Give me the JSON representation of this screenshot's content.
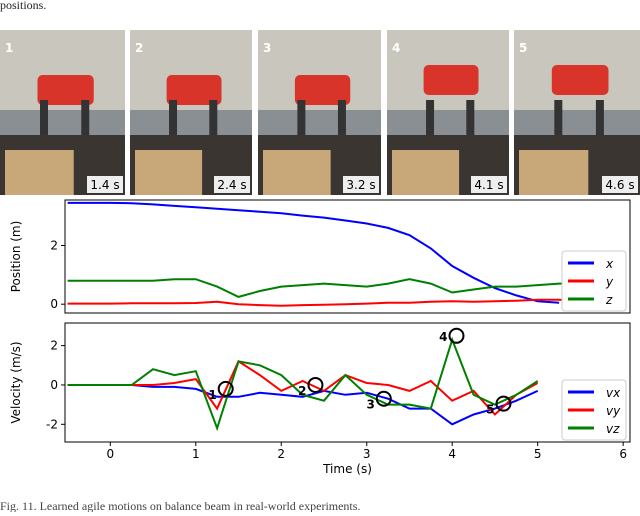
{
  "header": {
    "text": "positions."
  },
  "photos": [
    {
      "label": "1",
      "time": "1.4 s"
    },
    {
      "label": "2",
      "time": "2.4 s"
    },
    {
      "label": "3",
      "time": "3.2 s"
    },
    {
      "label": "4",
      "time": "4.1 s"
    },
    {
      "label": "5",
      "time": "4.6 s"
    }
  ],
  "chart_data": [
    {
      "type": "line",
      "ylabel": "Position (m)",
      "legend": "lower right",
      "xlim": [
        -0.53,
        6.08
      ],
      "ylim": [
        -0.3,
        3.55
      ],
      "yticks": [
        0,
        2
      ],
      "x": [
        -0.5,
        -0.25,
        0,
        0.25,
        0.5,
        0.75,
        1,
        1.25,
        1.5,
        1.75,
        2,
        2.25,
        2.5,
        2.75,
        3,
        3.25,
        3.5,
        3.75,
        4,
        4.25,
        4.5,
        4.75,
        5,
        5.25,
        5.5,
        5.75,
        6
      ],
      "series": [
        {
          "name": "x",
          "color": "#0000ff",
          "values": [
            3.45,
            3.45,
            3.45,
            3.44,
            3.4,
            3.35,
            3.3,
            3.25,
            3.2,
            3.15,
            3.1,
            3.02,
            2.95,
            2.85,
            2.75,
            2.6,
            2.35,
            1.9,
            1.3,
            0.9,
            0.55,
            0.3,
            0.1,
            0.05,
            null,
            null,
            null
          ]
        },
        {
          "name": "y",
          "color": "#ff0000",
          "values": [
            0.02,
            0.02,
            0.02,
            0.03,
            0.03,
            0.03,
            0.04,
            0.08,
            0.0,
            -0.03,
            -0.05,
            -0.03,
            -0.02,
            0.0,
            0.02,
            0.05,
            0.05,
            0.08,
            0.1,
            0.08,
            0.1,
            0.12,
            0.15,
            0.15,
            0.12,
            0.12,
            0.12
          ]
        },
        {
          "name": "z",
          "color": "#008000",
          "values": [
            0.8,
            0.8,
            0.8,
            0.8,
            0.8,
            0.85,
            0.85,
            0.6,
            0.25,
            0.45,
            0.6,
            0.65,
            0.7,
            0.65,
            0.6,
            0.7,
            0.85,
            0.7,
            0.4,
            0.5,
            0.6,
            0.6,
            0.65,
            0.7,
            0.7,
            0.72,
            0.7
          ]
        }
      ]
    },
    {
      "type": "line",
      "ylabel": "Velocity (m/s)",
      "xlabel": "Time (s)",
      "legend": "lower right",
      "xlim": [
        -0.53,
        6.08
      ],
      "ylim": [
        -2.9,
        3.15
      ],
      "yticks": [
        -2,
        0,
        2
      ],
      "xticks": [
        0,
        1,
        2,
        3,
        4,
        5,
        6
      ],
      "x": [
        -0.5,
        -0.25,
        0,
        0.25,
        0.5,
        0.75,
        1,
        1.25,
        1.5,
        1.75,
        2,
        2.25,
        2.5,
        2.75,
        3,
        3.25,
        3.5,
        3.75,
        4,
        4.25,
        4.5,
        4.75,
        5,
        5.25,
        5.5,
        5.75,
        6
      ],
      "series": [
        {
          "name": "vx",
          "color": "#0000ff",
          "values": [
            0,
            0,
            0,
            0,
            -0.1,
            -0.1,
            -0.2,
            -0.6,
            -0.6,
            -0.4,
            -0.5,
            -0.6,
            -0.3,
            -0.5,
            -0.4,
            -0.7,
            -1.2,
            -1.2,
            -2.0,
            -1.5,
            -1.2,
            -0.8,
            -0.3,
            null,
            null,
            null,
            null
          ]
        },
        {
          "name": "vy",
          "color": "#ff0000",
          "values": [
            0,
            0,
            0,
            0,
            0,
            0.1,
            0.3,
            -1.2,
            1.2,
            0.5,
            -0.3,
            0.2,
            -0.3,
            0.5,
            0.1,
            0,
            -0.3,
            0.2,
            -0.8,
            -0.3,
            -1.5,
            -0.5,
            0.1,
            null,
            null,
            null,
            null
          ]
        },
        {
          "name": "vz",
          "color": "#008000",
          "values": [
            0,
            0,
            0,
            0,
            0.8,
            0.5,
            0.7,
            -2.2,
            1.2,
            1.0,
            0.5,
            -0.5,
            -0.8,
            0.5,
            -0.5,
            -1.0,
            -1.0,
            -1.2,
            2.3,
            -0.5,
            -1.0,
            -0.5,
            0.2,
            null,
            null,
            null,
            null
          ]
        }
      ],
      "annotations": [
        {
          "label": "1",
          "x": 1.35,
          "y": -0.2
        },
        {
          "label": "2",
          "x": 2.4,
          "y": 0
        },
        {
          "label": "3",
          "x": 3.2,
          "y": -0.7
        },
        {
          "label": "4",
          "x": 4.05,
          "y": 2.5
        },
        {
          "label": "5",
          "x": 4.6,
          "y": -0.95
        }
      ]
    }
  ],
  "caption": {
    "text": "Fig. 11.   Learned agile motions on balance beam in real-world experiments."
  }
}
